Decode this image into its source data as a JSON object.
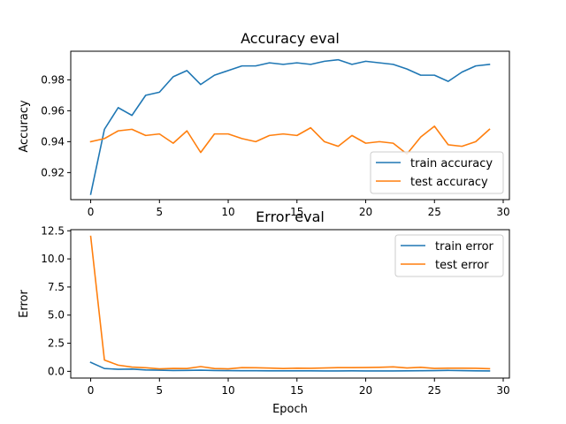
{
  "chart_data": [
    {
      "type": "line",
      "title": "Accuracy eval",
      "xlabel": "",
      "ylabel": "Accuracy",
      "xlim": [
        -1.45,
        30.45
      ],
      "ylim": [
        0.9025,
        0.9985
      ],
      "xticks": [
        0,
        5,
        10,
        15,
        20,
        25,
        30
      ],
      "yticks": [
        0.92,
        0.94,
        0.96,
        0.98
      ],
      "ytick_labels": [
        "0.92",
        "0.94",
        "0.96",
        "0.98"
      ],
      "grid": false,
      "legend_position": "lower-right",
      "x": [
        0,
        1,
        2,
        3,
        4,
        5,
        6,
        7,
        8,
        9,
        10,
        11,
        12,
        13,
        14,
        15,
        16,
        17,
        18,
        19,
        20,
        21,
        22,
        23,
        24,
        25,
        26,
        27,
        28,
        29
      ],
      "series": [
        {
          "name": "train accuracy",
          "color": "#1f77b4",
          "values": [
            0.906,
            0.948,
            0.962,
            0.957,
            0.97,
            0.972,
            0.982,
            0.986,
            0.977,
            0.983,
            0.986,
            0.989,
            0.989,
            0.991,
            0.99,
            0.991,
            0.99,
            0.992,
            0.993,
            0.99,
            0.992,
            0.991,
            0.99,
            0.987,
            0.983,
            0.983,
            0.979,
            0.985,
            0.989,
            0.99
          ]
        },
        {
          "name": "test accuracy",
          "color": "#ff7f0e",
          "values": [
            0.94,
            0.942,
            0.947,
            0.948,
            0.944,
            0.945,
            0.939,
            0.947,
            0.933,
            0.945,
            0.945,
            0.942,
            0.94,
            0.944,
            0.945,
            0.944,
            0.949,
            0.94,
            0.937,
            0.944,
            0.939,
            0.94,
            0.939,
            0.932,
            0.943,
            0.95,
            0.938,
            0.937,
            0.94,
            0.948
          ]
        }
      ]
    },
    {
      "type": "line",
      "title": "Error eval",
      "xlabel": "Epoch",
      "ylabel": "Error",
      "xlim": [
        -1.45,
        30.45
      ],
      "ylim": [
        -0.6,
        12.6
      ],
      "xticks": [
        0,
        5,
        10,
        15,
        20,
        25,
        30
      ],
      "yticks": [
        0.0,
        2.5,
        5.0,
        7.5,
        10.0,
        12.5
      ],
      "ytick_labels": [
        "0.0",
        "2.5",
        "5.0",
        "7.5",
        "10.0",
        "12.5"
      ],
      "grid": false,
      "legend_position": "upper-right",
      "x": [
        0,
        1,
        2,
        3,
        4,
        5,
        6,
        7,
        8,
        9,
        10,
        11,
        12,
        13,
        14,
        15,
        16,
        17,
        18,
        19,
        20,
        21,
        22,
        23,
        24,
        25,
        26,
        27,
        28,
        29
      ],
      "series": [
        {
          "name": "train error",
          "color": "#1f77b4",
          "values": [
            0.8,
            0.25,
            0.18,
            0.2,
            0.12,
            0.1,
            0.07,
            0.08,
            0.1,
            0.07,
            0.06,
            0.05,
            0.05,
            0.04,
            0.04,
            0.04,
            0.04,
            0.03,
            0.03,
            0.04,
            0.03,
            0.03,
            0.03,
            0.04,
            0.05,
            0.06,
            0.08,
            0.06,
            0.04,
            0.03
          ]
        },
        {
          "name": "test error",
          "color": "#ff7f0e",
          "values": [
            12.0,
            1.0,
            0.55,
            0.38,
            0.32,
            0.22,
            0.26,
            0.25,
            0.42,
            0.25,
            0.22,
            0.33,
            0.32,
            0.29,
            0.25,
            0.28,
            0.27,
            0.3,
            0.33,
            0.33,
            0.34,
            0.36,
            0.4,
            0.3,
            0.36,
            0.26,
            0.28,
            0.28,
            0.27,
            0.23
          ]
        }
      ]
    }
  ]
}
